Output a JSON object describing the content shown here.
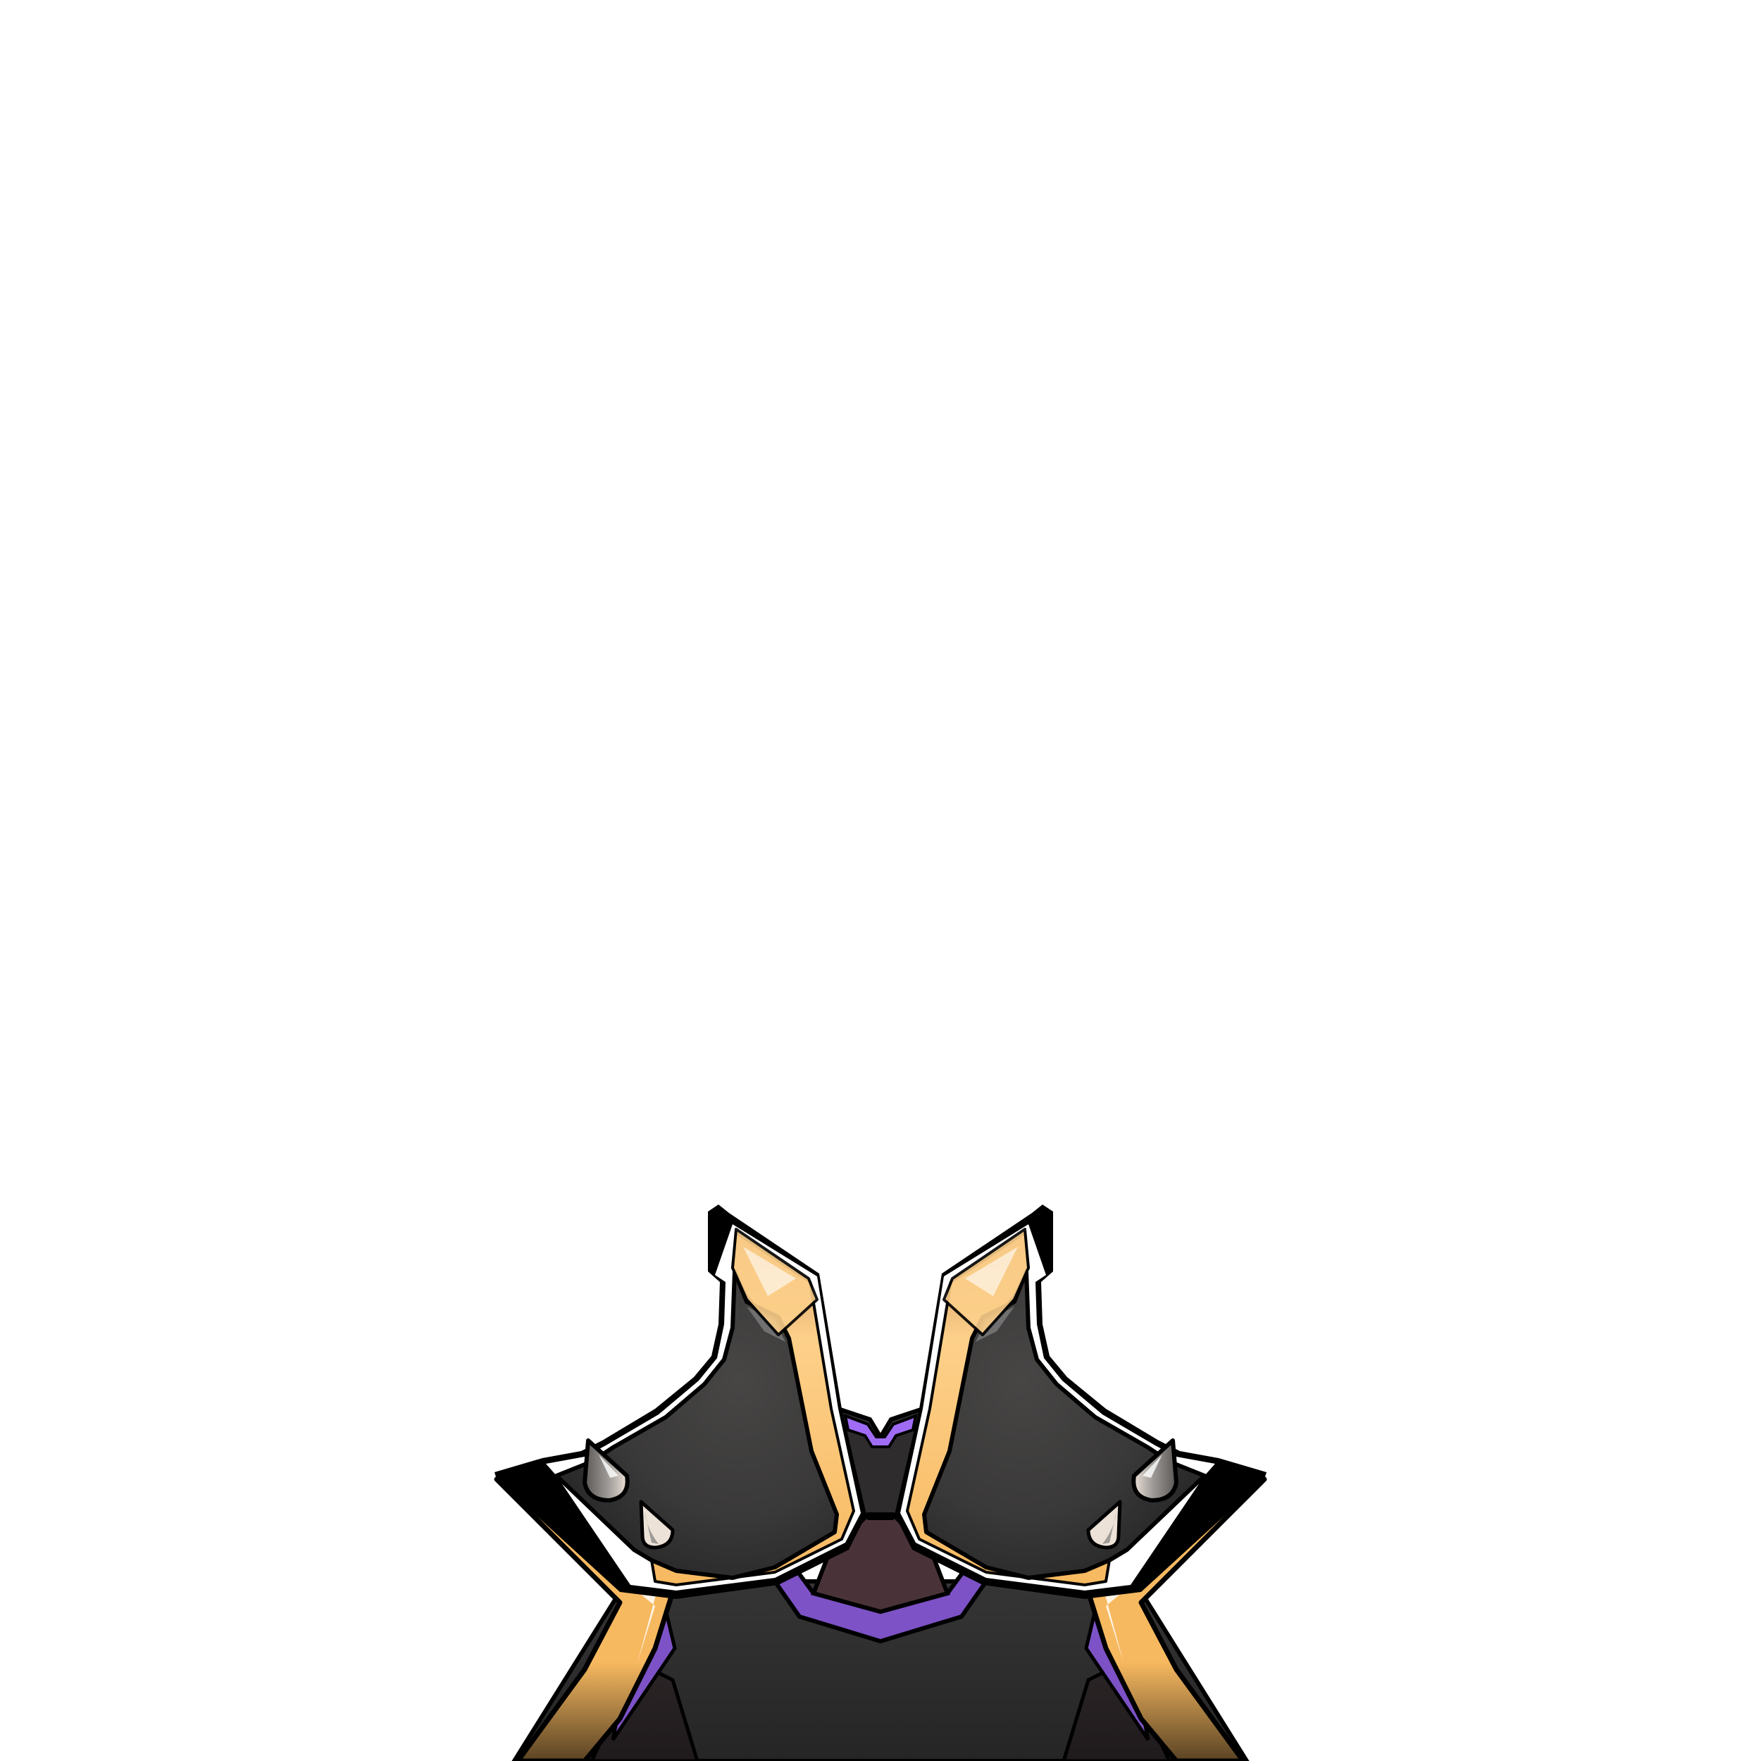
{
  "canvas": {
    "background": "#ffffff"
  },
  "asset": {
    "name": "armor-chestplate-sprite",
    "colors": {
      "outline": "#000000",
      "plate_dark": "#2b2b2b",
      "plate_mid": "#3c3c3b",
      "plate_light": "#474645",
      "gold_trim": "#f7b960",
      "gold_light": "#fdd08a",
      "gold_dark": "#4a371f",
      "purple_trim": "#7d52c6",
      "purple_light": "#a06cf5",
      "center_gem": "#4a3338",
      "spike_light": "#ede2d8",
      "spike_dark": "#5a5756",
      "highlight": "#ffffff"
    }
  }
}
